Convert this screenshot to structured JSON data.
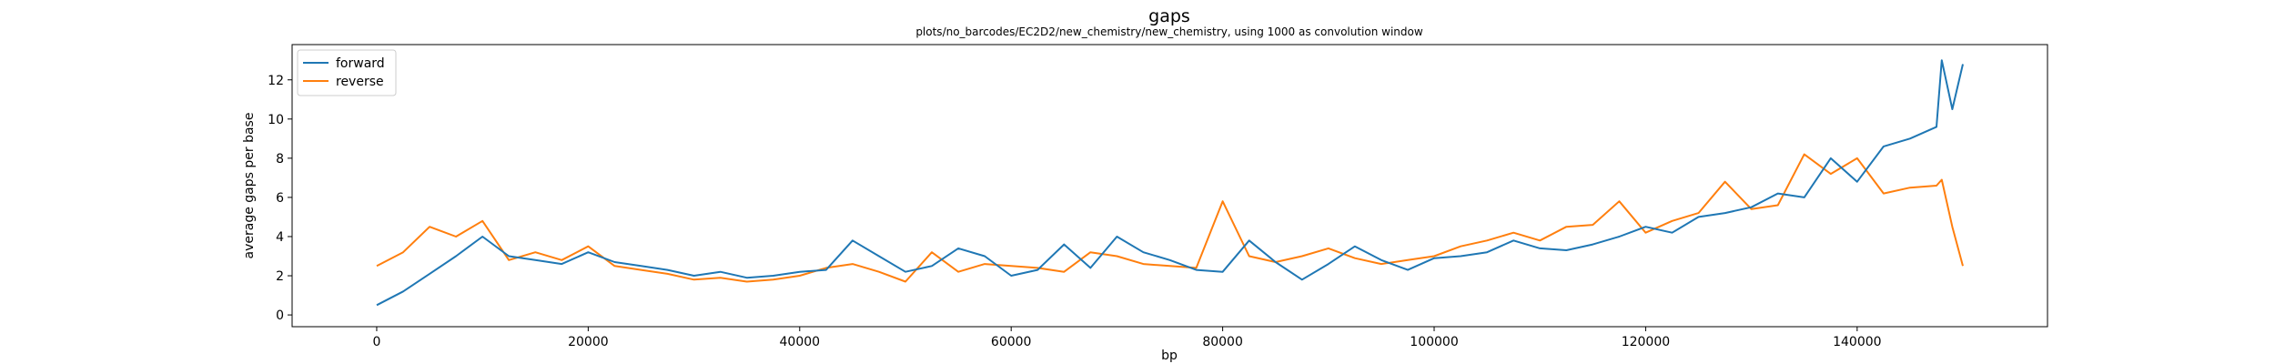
{
  "chart_data": {
    "type": "line",
    "title": "gaps",
    "subtitle": "plots/no_barcodes/EC2D2/new_chemistry/new_chemistry, using 1000 as convolution window",
    "xlabel": "bp",
    "ylabel": "average gaps per base",
    "xlim": [
      -8000,
      158000
    ],
    "ylim": [
      -0.6,
      13.8
    ],
    "xticks": [
      0,
      20000,
      40000,
      60000,
      80000,
      100000,
      120000,
      140000
    ],
    "xtick_labels": [
      "0",
      "20000",
      "40000",
      "60000",
      "80000",
      "100000",
      "120000",
      "140000"
    ],
    "yticks": [
      0,
      2,
      4,
      6,
      8,
      10,
      12
    ],
    "ytick_labels": [
      "0",
      "2",
      "4",
      "6",
      "8",
      "10",
      "12"
    ],
    "grid": false,
    "legend_position": "top-left",
    "colors": {
      "forward": "#1f77b4",
      "reverse": "#ff7f0e"
    },
    "x": [
      0,
      2500,
      5000,
      7500,
      10000,
      12500,
      15000,
      17500,
      20000,
      22500,
      25000,
      27500,
      30000,
      32500,
      35000,
      37500,
      40000,
      42500,
      45000,
      47500,
      50000,
      52500,
      55000,
      57500,
      60000,
      62500,
      65000,
      67500,
      70000,
      72500,
      75000,
      77500,
      80000,
      82500,
      85000,
      87500,
      90000,
      92500,
      95000,
      97500,
      100000,
      102500,
      105000,
      107500,
      110000,
      112500,
      115000,
      117500,
      120000,
      122500,
      125000,
      127500,
      130000,
      132500,
      135000,
      137500,
      140000,
      142500,
      145000,
      147500,
      148000,
      149000,
      150000
    ],
    "series": [
      {
        "name": "forward",
        "values": [
          0.5,
          1.2,
          2.1,
          3.0,
          4.0,
          3.0,
          2.8,
          2.6,
          3.2,
          2.7,
          2.5,
          2.3,
          2.0,
          2.2,
          1.9,
          2.0,
          2.2,
          2.3,
          3.8,
          3.0,
          2.2,
          2.5,
          3.4,
          3.0,
          2.0,
          2.3,
          3.6,
          2.4,
          4.0,
          3.2,
          2.8,
          2.3,
          2.2,
          3.8,
          2.7,
          1.8,
          2.6,
          3.5,
          2.8,
          2.3,
          2.9,
          3.0,
          3.2,
          3.8,
          3.4,
          3.3,
          3.6,
          4.0,
          4.5,
          4.2,
          5.0,
          5.2,
          5.5,
          6.2,
          6.0,
          8.0,
          6.8,
          8.6,
          9.0,
          9.6,
          13.0,
          10.5,
          12.8
        ]
      },
      {
        "name": "reverse",
        "values": [
          2.5,
          3.2,
          4.5,
          4.0,
          4.8,
          2.8,
          3.2,
          2.8,
          3.5,
          2.5,
          2.3,
          2.1,
          1.8,
          1.9,
          1.7,
          1.8,
          2.0,
          2.4,
          2.6,
          2.2,
          1.7,
          3.2,
          2.2,
          2.6,
          2.5,
          2.4,
          2.2,
          3.2,
          3.0,
          2.6,
          2.5,
          2.4,
          5.8,
          3.0,
          2.7,
          3.0,
          3.4,
          2.9,
          2.6,
          2.8,
          3.0,
          3.5,
          3.8,
          4.2,
          3.8,
          4.5,
          4.6,
          5.8,
          4.2,
          4.8,
          5.2,
          6.8,
          5.4,
          5.6,
          8.2,
          7.2,
          8.0,
          6.2,
          6.5,
          6.6,
          6.9,
          4.5,
          2.5
        ]
      }
    ]
  }
}
